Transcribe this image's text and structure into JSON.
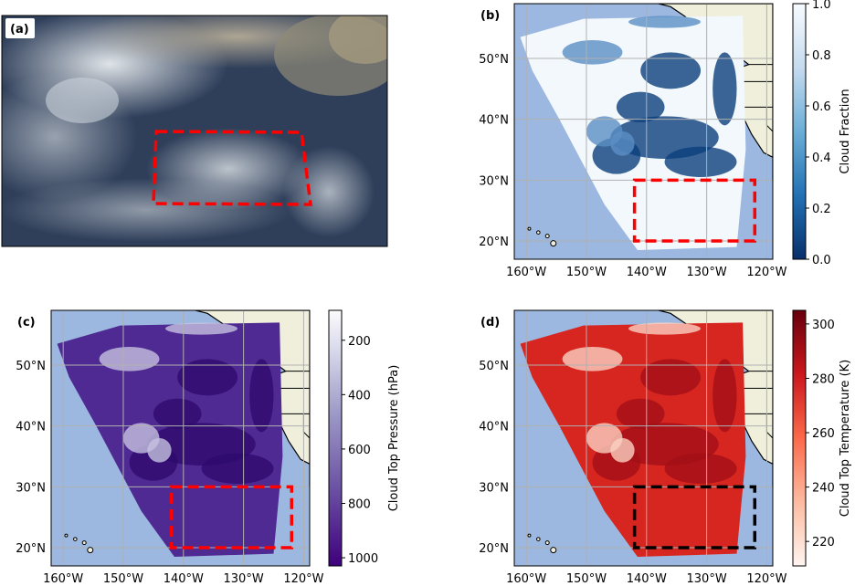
{
  "panels": {
    "a": {
      "label": "(a)"
    },
    "b": {
      "label": "(b)"
    },
    "c": {
      "label": "(c)"
    },
    "d": {
      "label": "(d)"
    }
  },
  "lat_ticks": [
    "20°N",
    "30°N",
    "40°N",
    "50°N"
  ],
  "lon_ticks": [
    "160°W",
    "150°W",
    "140°W",
    "130°W",
    "120°W"
  ],
  "colors": {
    "ocean": "#9db8e0",
    "land": "#efefdb",
    "box_red": "#ff0000",
    "box_black": "#000000",
    "grid": "#b0b0b0"
  },
  "chart_data": [
    {
      "panel": "a",
      "type": "image",
      "description_label": "(a)",
      "highlight_box": {
        "lon": [
          -142,
          -122
        ],
        "lat": [
          20,
          30
        ],
        "style": "dashed",
        "color": "red"
      }
    },
    {
      "panel": "b",
      "type": "heatmap",
      "colorbar": {
        "label": "Cloud Fraction",
        "ticks": [
          "0.0",
          "0.2",
          "0.4",
          "0.6",
          "0.8",
          "1.0"
        ],
        "range": [
          0,
          1
        ],
        "cmap": "Blues_r"
      },
      "highlight_box": {
        "lon": [
          -142,
          -122
        ],
        "lat": [
          20,
          30
        ],
        "style": "dashed",
        "color": "red"
      },
      "lon_range": [
        -162,
        -119
      ],
      "lat_range": [
        17,
        59
      ]
    },
    {
      "panel": "c",
      "type": "heatmap",
      "colorbar": {
        "label": "Cloud Top Pressure (hPa)",
        "ticks": [
          "200",
          "400",
          "600",
          "800",
          "1000"
        ],
        "range": [
          1030,
          90
        ],
        "cmap": "Purples_r"
      },
      "highlight_box": {
        "lon": [
          -142,
          -122
        ],
        "lat": [
          20,
          30
        ],
        "style": "dashed",
        "color": "red"
      },
      "lon_range": [
        -162,
        -119
      ],
      "lat_range": [
        17,
        59
      ]
    },
    {
      "panel": "d",
      "type": "heatmap",
      "colorbar": {
        "label": "Cloud Top Temperature (K)",
        "ticks": [
          "220",
          "240",
          "260",
          "280",
          "300"
        ],
        "range": [
          211,
          305
        ],
        "cmap": "Reds"
      },
      "highlight_box": {
        "lon": [
          -142,
          -122
        ],
        "lat": [
          20,
          30
        ],
        "style": "dashed",
        "color": "black"
      },
      "lon_range": [
        -162,
        -119
      ],
      "lat_range": [
        17,
        59
      ]
    }
  ]
}
